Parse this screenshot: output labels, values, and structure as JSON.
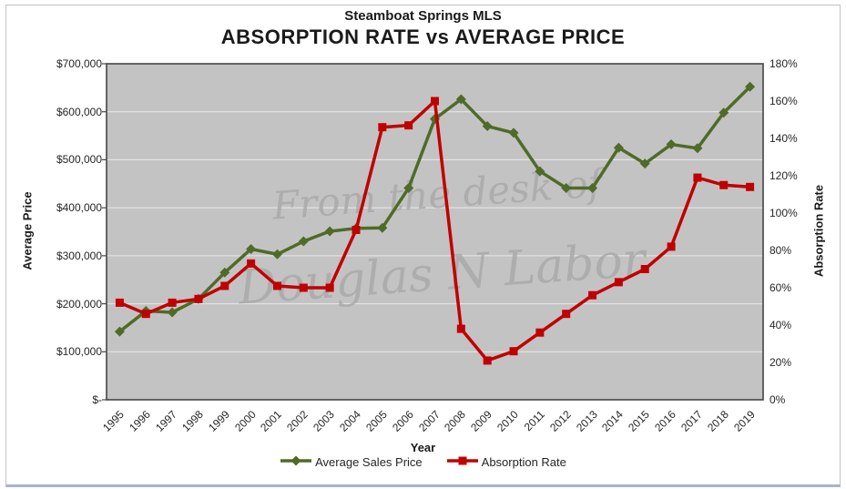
{
  "header": {
    "title": "Steamboat Springs MLS",
    "subtitle": "ABSORPTION RATE vs AVERAGE PRICE"
  },
  "watermark": {
    "line1": "From the desk of",
    "line2": "Douglas N Labor"
  },
  "axes": {
    "left": {
      "title": "Average Price",
      "ticks": [
        "$700,000",
        "$600,000",
        "$500,000",
        "$400,000",
        "$300,000",
        "$200,000",
        "$100,000",
        "$-"
      ]
    },
    "right": {
      "title": "Absorption Rate",
      "ticks": [
        "180%",
        "160%",
        "140%",
        "120%",
        "100%",
        "80%",
        "60%",
        "40%",
        "20%",
        "0%"
      ]
    },
    "x": {
      "title": "Year"
    }
  },
  "legend": [
    {
      "label": "Average Sales Price",
      "color": "#4f6b28",
      "marker": "diamond"
    },
    {
      "label": "Absorption Rate",
      "color": "#c00000",
      "marker": "square"
    }
  ],
  "colors": {
    "plot_bg": "#c3c3c3",
    "gridline": "#e9e9e9",
    "plot_border": "#454545",
    "watermark": "#a6a6a6",
    "green_series": "#4f6b28",
    "red_series": "#c00000"
  },
  "chart_data": {
    "type": "line",
    "title": "ABSORPTION RATE vs AVERAGE PRICE",
    "subtitle": "Steamboat Springs MLS",
    "xlabel": "Year",
    "grid": true,
    "legend_position": "bottom",
    "categories": [
      "1995",
      "1996",
      "1997",
      "1998",
      "1999",
      "2000",
      "2001",
      "2002",
      "2003",
      "2004",
      "2005",
      "2006",
      "2007",
      "2008",
      "2009",
      "2010",
      "2011",
      "2012",
      "2013",
      "2014",
      "2015",
      "2016",
      "2017",
      "2018",
      "2019"
    ],
    "left_axis": {
      "label": "Average Price",
      "ylim": [
        0,
        700000
      ],
      "tick_step": 100000,
      "format": "USD"
    },
    "right_axis": {
      "label": "Absorption Rate",
      "ylim": [
        0,
        180
      ],
      "tick_step": 20,
      "format": "percent"
    },
    "series": [
      {
        "name": "Average Sales Price",
        "axis": "left",
        "color": "#4f6b28",
        "marker": "diamond",
        "values": [
          142000,
          185000,
          182000,
          210000,
          265000,
          314000,
          303000,
          330000,
          351000,
          357000,
          358000,
          441000,
          585000,
          626000,
          570000,
          556000,
          476000,
          441000,
          441000,
          525000,
          492000,
          532000,
          524000,
          598000,
          652000
        ]
      },
      {
        "name": "Absorption Rate",
        "axis": "right",
        "color": "#c00000",
        "marker": "square",
        "values": [
          52,
          46,
          52,
          54,
          61,
          73,
          61,
          60,
          60,
          91,
          146,
          147,
          160,
          38,
          21,
          26,
          36,
          46,
          56,
          63,
          70,
          82,
          119,
          115,
          114
        ]
      }
    ]
  }
}
